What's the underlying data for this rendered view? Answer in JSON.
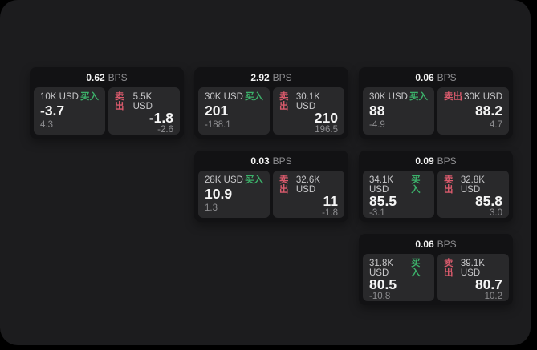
{
  "theme": {
    "page_bg": "#000000",
    "panel_bg": "#1c1c1e",
    "card_bg": "#121214",
    "tile_bg": "#29292b",
    "buy_color": "#3cb06a",
    "sell_color": "#d95a6c",
    "value_color": "#f5f5f5",
    "label_color": "#c8c8ca",
    "muted_color": "#8e8e91"
  },
  "labels": {
    "bps": "BPS",
    "buy": "买入",
    "sell": "卖出"
  },
  "cards": [
    {
      "col": 1,
      "row": 1,
      "bps": "0.62",
      "buy": {
        "amount": "10K USD",
        "value": "-3.7",
        "sub": "4.3"
      },
      "sell": {
        "amount": "5.5K USD",
        "value": "-1.8",
        "sub": "-2.6"
      }
    },
    {
      "col": 2,
      "row": 1,
      "bps": "2.92",
      "buy": {
        "amount": "30K USD",
        "value": "201",
        "sub": "-188.1"
      },
      "sell": {
        "amount": "30.1K USD",
        "value": "210",
        "sub": "196.5"
      }
    },
    {
      "col": 3,
      "row": 1,
      "bps": "0.06",
      "buy": {
        "amount": "30K USD",
        "value": "88",
        "sub": "-4.9"
      },
      "sell": {
        "amount": "30K USD",
        "value": "88.2",
        "sub": "4.7"
      }
    },
    {
      "col": 2,
      "row": 2,
      "bps": "0.03",
      "buy": {
        "amount": "28K USD",
        "value": "10.9",
        "sub": "1.3"
      },
      "sell": {
        "amount": "32.6K USD",
        "value": "11",
        "sub": "-1.8"
      }
    },
    {
      "col": 3,
      "row": 2,
      "bps": "0.09",
      "buy": {
        "amount": "34.1K USD",
        "value": "85.5",
        "sub": "-3.1"
      },
      "sell": {
        "amount": "32.8K USD",
        "value": "85.8",
        "sub": "3.0"
      }
    },
    {
      "col": 3,
      "row": 3,
      "bps": "0.06",
      "buy": {
        "amount": "31.8K USD",
        "value": "80.5",
        "sub": "-10.8"
      },
      "sell": {
        "amount": "39.1K USD",
        "value": "80.7",
        "sub": "10.2"
      }
    }
  ]
}
